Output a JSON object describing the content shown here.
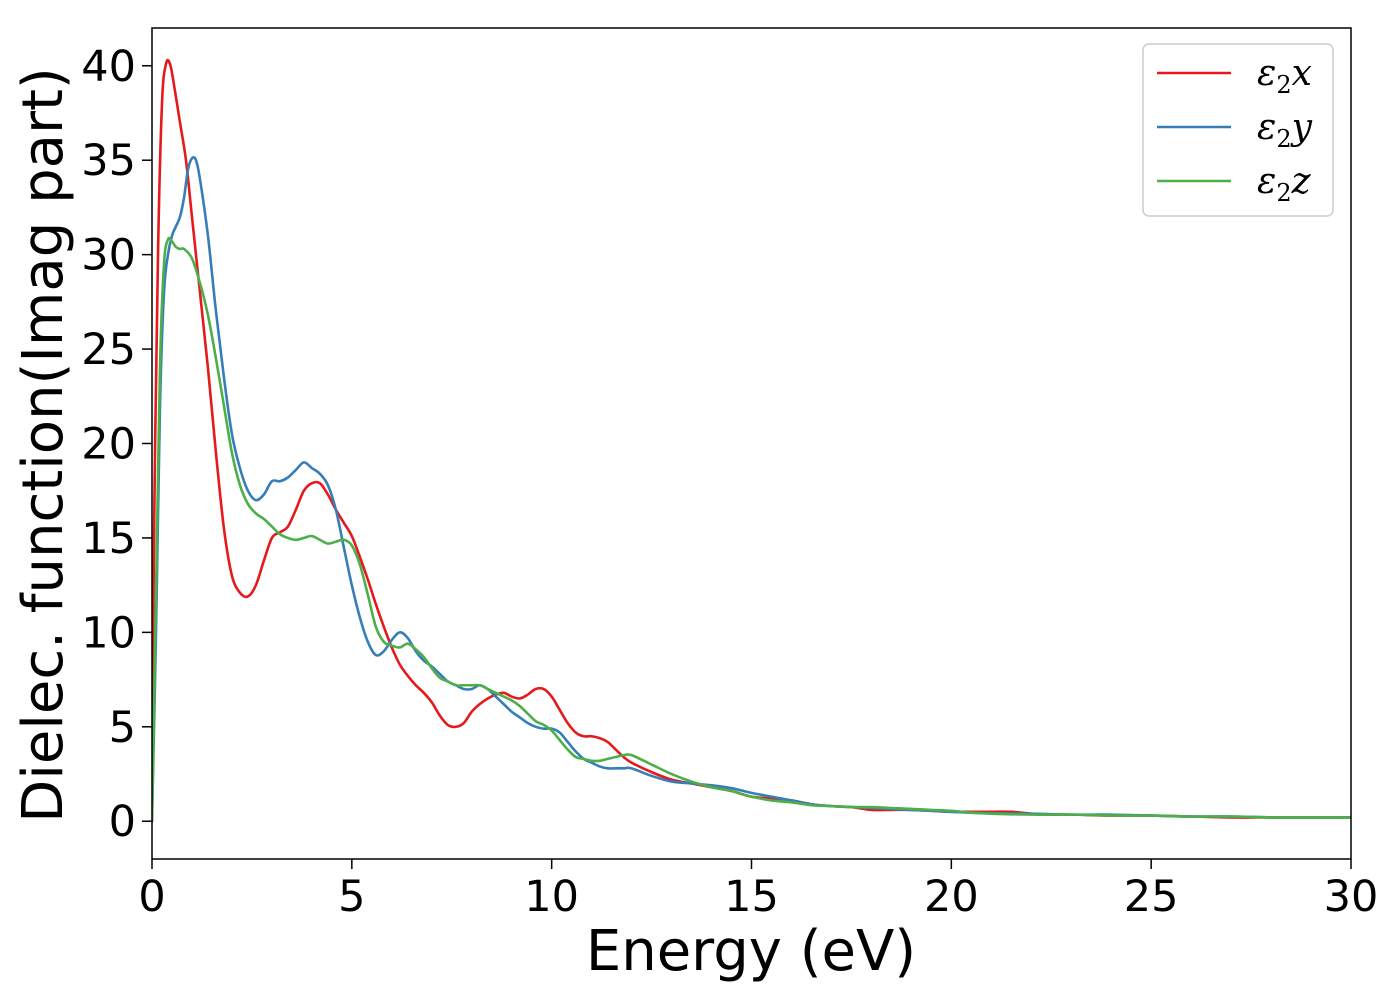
{
  "chart_data": {
    "type": "line",
    "title": "",
    "xlabel": "Energy (eV)",
    "ylabel": "Dielec. function(Imag part)",
    "xlim": [
      0,
      30
    ],
    "ylim": [
      -2,
      42
    ],
    "xticks": [
      0,
      5,
      10,
      15,
      20,
      25,
      30
    ],
    "yticks": [
      0,
      5,
      10,
      15,
      20,
      25,
      30,
      35,
      40
    ],
    "grid": false,
    "legend_position": "top-right",
    "series": [
      {
        "name": "ε2x",
        "legend_base": "ε",
        "legend_sub": "2",
        "legend_suffix": "x",
        "color": "#e41a1c",
        "x": [
          0,
          0.05,
          0.15,
          0.25,
          0.35,
          0.45,
          0.55,
          0.7,
          0.85,
          1.0,
          1.2,
          1.4,
          1.6,
          1.8,
          2.0,
          2.2,
          2.4,
          2.6,
          2.8,
          3.0,
          3.2,
          3.4,
          3.6,
          3.8,
          4.0,
          4.2,
          4.4,
          4.6,
          4.8,
          5.0,
          5.2,
          5.4,
          5.6,
          5.8,
          6.0,
          6.2,
          6.4,
          6.6,
          6.8,
          7.0,
          7.2,
          7.4,
          7.6,
          7.8,
          8.0,
          8.2,
          8.4,
          8.6,
          8.8,
          9.0,
          9.2,
          9.4,
          9.6,
          9.8,
          10.0,
          10.2,
          10.4,
          10.6,
          10.8,
          11.0,
          11.2,
          11.4,
          11.6,
          11.8,
          12.0,
          12.5,
          13.0,
          13.5,
          14.0,
          14.5,
          15.0,
          15.5,
          16.0,
          16.5,
          17.0,
          17.5,
          18.0,
          18.5,
          19.0,
          19.5,
          20.0,
          20.5,
          21.0,
          21.5,
          22.0,
          22.5,
          23.0,
          24.0,
          25.0,
          26.0,
          27.0,
          28.0,
          29.0,
          30.0
        ],
        "values": [
          0,
          15,
          30,
          38,
          40.1,
          40.1,
          39,
          37,
          35,
          32,
          28,
          24,
          19.5,
          15.5,
          13,
          12.1,
          11.9,
          12.5,
          13.8,
          15,
          15.3,
          15.6,
          16.5,
          17.5,
          17.9,
          17.9,
          17.3,
          16.5,
          15.8,
          15.1,
          14,
          12.8,
          11.5,
          10.3,
          9.2,
          8.3,
          7.7,
          7.2,
          6.8,
          6.3,
          5.6,
          5.1,
          5.0,
          5.2,
          5.8,
          6.2,
          6.5,
          6.7,
          6.8,
          6.6,
          6.5,
          6.7,
          7.0,
          7.0,
          6.6,
          5.9,
          5.2,
          4.7,
          4.5,
          4.5,
          4.4,
          4.2,
          3.8,
          3.4,
          3.1,
          2.6,
          2.2,
          2.0,
          1.8,
          1.6,
          1.3,
          1.2,
          1.1,
          0.9,
          0.8,
          0.75,
          0.6,
          0.6,
          0.6,
          0.55,
          0.5,
          0.5,
          0.5,
          0.5,
          0.4,
          0.35,
          0.35,
          0.3,
          0.3,
          0.25,
          0.2,
          0.2,
          0.2,
          0.2
        ]
      },
      {
        "name": "ε2y",
        "legend_base": "ε",
        "legend_sub": "2",
        "legend_suffix": "y",
        "color": "#377eb8",
        "x": [
          0,
          0.1,
          0.2,
          0.3,
          0.4,
          0.5,
          0.6,
          0.7,
          0.8,
          0.9,
          1.0,
          1.1,
          1.2,
          1.4,
          1.6,
          1.8,
          2.0,
          2.2,
          2.4,
          2.6,
          2.8,
          3.0,
          3.2,
          3.4,
          3.6,
          3.8,
          4.0,
          4.2,
          4.4,
          4.6,
          4.8,
          5.0,
          5.2,
          5.4,
          5.6,
          5.8,
          6.0,
          6.2,
          6.4,
          6.6,
          6.8,
          7.0,
          7.2,
          7.4,
          7.6,
          7.8,
          8.0,
          8.2,
          8.4,
          8.6,
          8.8,
          9.0,
          9.2,
          9.4,
          9.6,
          9.8,
          10.0,
          10.2,
          10.4,
          10.6,
          10.8,
          11.0,
          11.2,
          11.4,
          11.6,
          11.8,
          12.0,
          12.5,
          13.0,
          13.5,
          14.0,
          14.5,
          15.0,
          15.5,
          16.0,
          16.5,
          17.0,
          17.5,
          18.0,
          18.5,
          19.0,
          19.5,
          20.0,
          20.5,
          21.0,
          22.0,
          23.0,
          24.0,
          25.0,
          26.0,
          27.0,
          28.0,
          29.0,
          30.0
        ],
        "values": [
          0,
          10,
          22,
          28,
          30,
          31,
          31.5,
          32,
          33,
          34.5,
          35.1,
          35,
          34,
          31,
          27,
          23.5,
          20.5,
          18.7,
          17.5,
          17.0,
          17.3,
          18.0,
          18.0,
          18.2,
          18.6,
          19.0,
          18.7,
          18.4,
          17.8,
          16.5,
          14.5,
          12.5,
          10.8,
          9.5,
          8.8,
          9.0,
          9.6,
          10.0,
          9.7,
          9.0,
          8.5,
          8.2,
          7.8,
          7.4,
          7.2,
          7.0,
          7.0,
          7.2,
          7.0,
          6.6,
          6.2,
          5.8,
          5.5,
          5.2,
          5.0,
          4.9,
          4.9,
          4.7,
          4.2,
          3.7,
          3.3,
          3.1,
          2.9,
          2.8,
          2.8,
          2.8,
          2.8,
          2.4,
          2.1,
          2.0,
          1.9,
          1.75,
          1.5,
          1.3,
          1.1,
          0.9,
          0.8,
          0.75,
          0.7,
          0.65,
          0.6,
          0.55,
          0.5,
          0.45,
          0.42,
          0.4,
          0.35,
          0.35,
          0.3,
          0.25,
          0.25,
          0.2,
          0.2,
          0.2
        ]
      },
      {
        "name": "ε2z",
        "legend_base": "ε",
        "legend_sub": "2",
        "legend_suffix": "z",
        "color": "#4daf4a",
        "x": [
          0,
          0.1,
          0.2,
          0.3,
          0.4,
          0.5,
          0.6,
          0.7,
          0.8,
          1.0,
          1.2,
          1.4,
          1.6,
          1.8,
          2.0,
          2.2,
          2.4,
          2.6,
          2.8,
          3.0,
          3.2,
          3.4,
          3.6,
          3.8,
          4.0,
          4.2,
          4.4,
          4.6,
          4.8,
          5.0,
          5.2,
          5.4,
          5.6,
          5.8,
          6.0,
          6.2,
          6.4,
          6.6,
          6.8,
          7.0,
          7.2,
          7.4,
          7.6,
          7.8,
          8.0,
          8.2,
          8.4,
          8.6,
          8.8,
          9.0,
          9.2,
          9.4,
          9.6,
          9.8,
          10.0,
          10.2,
          10.4,
          10.6,
          10.8,
          11.0,
          11.2,
          11.4,
          11.6,
          11.8,
          12.0,
          12.5,
          13.0,
          13.5,
          14.0,
          14.5,
          15.0,
          15.5,
          16.0,
          16.5,
          17.0,
          17.5,
          18.0,
          18.5,
          19.0,
          19.5,
          20.0,
          20.5,
          21.0,
          22.0,
          23.0,
          24.0,
          25.0,
          26.0,
          27.0,
          28.0,
          29.0,
          30.0
        ],
        "values": [
          0,
          12,
          24,
          29.5,
          30.8,
          30.7,
          30.4,
          30.3,
          30.3,
          29.8,
          28.5,
          26.8,
          24.5,
          22,
          19.5,
          17.8,
          16.8,
          16.3,
          16.0,
          15.6,
          15.2,
          15.0,
          14.9,
          15.0,
          15.1,
          14.9,
          14.7,
          14.8,
          14.9,
          14.6,
          13.6,
          12.0,
          10.3,
          9.5,
          9.3,
          9.2,
          9.4,
          9.1,
          8.7,
          8.1,
          7.6,
          7.4,
          7.2,
          7.2,
          7.2,
          7.2,
          7.0,
          6.8,
          6.6,
          6.4,
          6.1,
          5.7,
          5.3,
          5.1,
          4.8,
          4.3,
          3.8,
          3.4,
          3.3,
          3.2,
          3.2,
          3.3,
          3.4,
          3.5,
          3.5,
          3.0,
          2.5,
          2.1,
          1.8,
          1.6,
          1.3,
          1.1,
          1.0,
          0.85,
          0.8,
          0.75,
          0.75,
          0.7,
          0.65,
          0.6,
          0.55,
          0.45,
          0.4,
          0.35,
          0.35,
          0.3,
          0.3,
          0.25,
          0.25,
          0.2,
          0.2,
          0.2
        ]
      }
    ]
  }
}
